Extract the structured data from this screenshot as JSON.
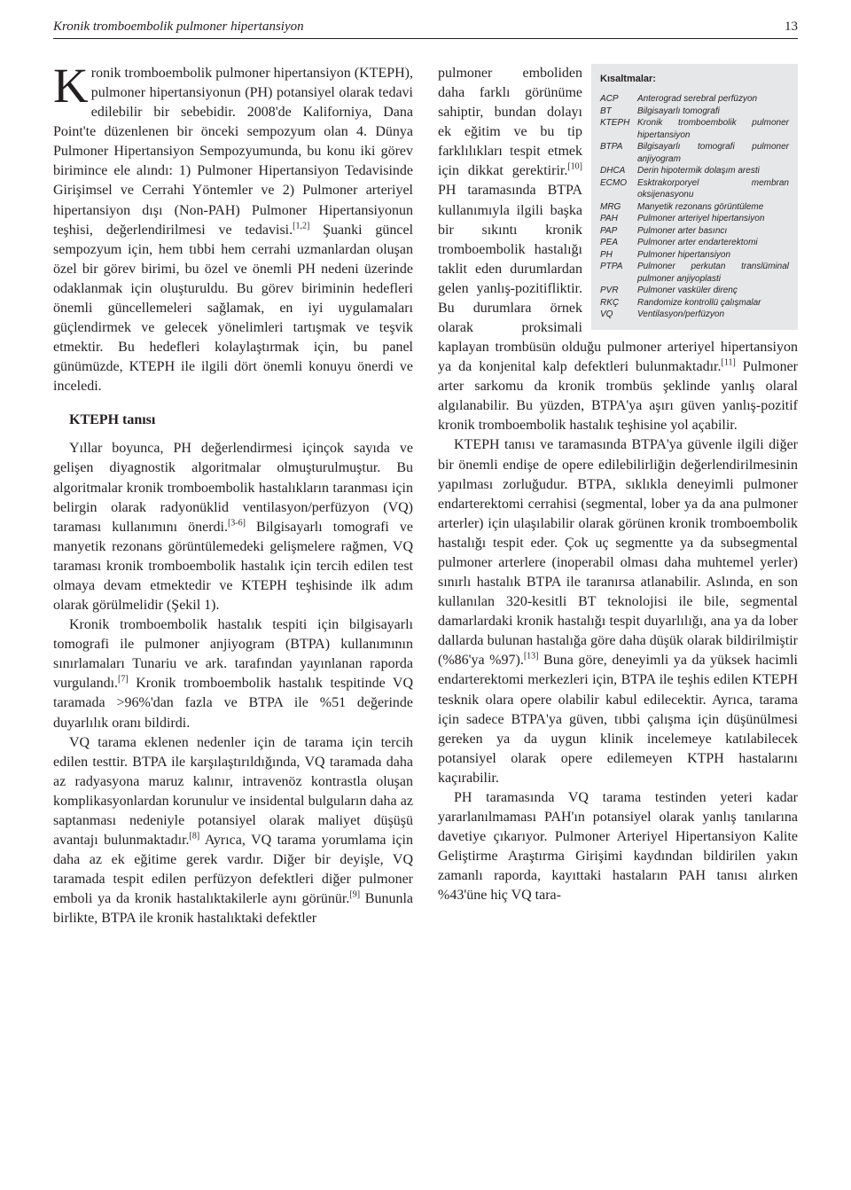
{
  "header": {
    "title": "Kronik tromboembolik pulmoner hipertansiyon",
    "page": "13"
  },
  "left": {
    "p1": "ronik tromboembolik pulmoner hipertansiyon (KTEPH), pulmoner hipertansiyonun (PH) potansiyel olarak tedavi edilebilir bir sebebidir. 2008'de Kaliforniya, Dana Point'te düzenlenen bir önceki sempozyum olan 4. Dünya Pulmoner Hipertansiyon Sempozyumunda, bu konu iki görev birimince ele alındı: 1) Pulmoner Hipertansiyon Tedavisinde Girişimsel ve Cerrahi Yöntemler ve 2) Pulmoner arteriyel hipertansiyon dışı (Non-PAH) Pulmoner Hipertansiyonun teşhisi, değerlendirilmesi ve tedavisi.",
    "p1_sup": "[1,2]",
    "p1b": " Şuanki güncel sempozyum için, hem tıbbi hem cerrahi uzmanlardan oluşan özel bir görev birimi, bu özel ve önemli PH nedeni üzerinde odaklanmak için oluşturuldu. Bu görev biriminin hedefleri önemli güncellemeleri sağlamak, en iyi uygulamaları güçlendirmek ve gelecek yönelimleri tartışmak ve teşvik etmektir. Bu hedefleri kolaylaştırmak için, bu panel günümüzde, KTEPH ile ilgili dört önemli konuyu önerdi ve inceledi.",
    "section1": "KTEPH tanısı",
    "p2": "Yıllar boyunca, PH değerlendirmesi içinçok sayıda ve gelişen diyagnostik algoritmalar olmuşturulmuştur. Bu algoritmalar kronik tromboembolik hastalıkların taranması için belirgin olarak radyonüklid ventilasyon/perfüzyon (VQ) taraması kullanımını önerdi.",
    "p2_sup": "[3-6]",
    "p2b": " Bilgisayarlı tomografi ve manyetik rezonans görüntülemedeki gelişmelere rağmen, VQ taraması kronik tromboembolik hastalık için tercih edilen test olmaya devam etmektedir ve KTEPH teşhisinde ilk adım olarak görülmelidir (Şekil 1).",
    "p3": "Kronik tromboembolik hastalık tespiti için bilgisayarlı tomografi ile pulmoner anjiyogram (BTPA) kullanımının sınırlamaları Tunariu ve ark. tarafından yayınlanan raporda vurgulandı.",
    "p3_sup": "[7]",
    "p3b": " Kronik tromboembolik hastalık tespitinde VQ taramada >96%'dan fazla ve BTPA ile %51 değerinde duyarlılık oranı bildirdi.",
    "p4": "VQ tarama eklenen nedenler için de tarama için tercih edilen testtir. BTPA ile karşılaştırıldığında, VQ taramada daha az radyasyona maruz kalınır, intravenöz kontrastla oluşan komplikasyonlardan korunulur ve insidental bulguların daha az saptanması nedeniyle potansiyel olarak maliyet düşüşü avantajı bulunmaktadır.",
    "p4_sup": "[8]",
    "p4b": " Ayrıca, VQ tarama yorumlama için daha az ek eğitime gerek vardır. Diğer bir deyişle, VQ taramada tespit edilen perfüzyon defektleri diğer pulmoner emboli ya da kronik hastalıktakilerle aynı görünür.",
    "p4_sup2": "[9]",
    "p4c": " Bununla birlikte, BTPA ile kronik hastalıktaki defektler"
  },
  "right": {
    "p1": "pulmoner emboliden daha farklı görünüme sahiptir, bundan dolayı ek eğitim ve bu tip farklılıkları tespit etmek için dikkat gerektirir.",
    "p1_sup": "[10]",
    "p1b": " PH taramasında BTPA kullanımıyla ilgili başka bir sıkıntı kronik tromboembolik hastalığı taklit eden durumlardan gelen yanlış-pozitifliktir. Bu durumlara örnek olarak proksimali kaplayan trombüsün olduğu pul",
    "p1bfull": "moner arteriyel hipertansiyon ya da konjenital kalp defektleri bulunmaktadır.",
    "p1_sup2": "[11]",
    "p1c": " Pulmoner arter sarkomu da kronik trombüs şeklinde yanlış olaral algılanabilir. Bu yüzden, BTPA'ya aşırı güven yanlış-pozitif kronik tromboembolik hastalık teşhisine yol açabilir.",
    "p2": "KTEPH tanısı ve taramasında BTPA'ya güvenle ilgili diğer bir önemli endişe de opere edilebilirliğin değerlendirilmesinin yapılması zorluğudur. BTPA, sıklıkla deneyimli pulmoner endarterektomi cerrahisi (segmental, lober ya da ana pulmoner arterler) için ulaşılabilir olarak görünen kronik tromboembolik hastalığı tespit eder. Çok uç segmentte ya da subsegmental pulmoner arterlere (inoperabil olması daha muhtemel yerler) sınırlı hastalık BTPA ile taranırsa atlanabilir. Aslında, en son kullanılan 320-kesitli BT teknolojisi ile bile, segmental damarlardaki kronik hastalığı tespit duyarlılığı, ana ya da lober dallarda bulunan hastalığa göre daha düşük olarak bildirilmiştir (%86'ya %97).",
    "p2_sup": "[13]",
    "p2b": " Buna göre, deneyimli ya da yüksek hacimli endarterektomi merkezleri için, BTPA ile teşhis edilen KTEPH tesknik olara opere olabilir kabul edilecektir. Ayrıca, tarama için sadece BTPA'ya güven, tıbbi çalışma için düşünülmesi gereken ya da uygun klinik incelemeye katılabilecek potansiyel olarak opere edilemeyen KTPH hastalarını kaçırabilir.",
    "p3": "PH taramasında VQ tarama testinden yeteri kadar yararlanılmaması PAH'ın potansiyel olarak yanlış tanılarına davetiye çıkarıyor. Pulmoner Arteriyel Hipertansiyon Kalite Geliştirme Araştırma Girişimi kaydından bildirilen yakın zamanlı raporda, kayıttaki hastaların PAH tanısı alırken %43'üne hiç VQ tara-"
  },
  "abbr": {
    "title": "Kısaltmalar:",
    "rows": [
      {
        "k": "ACP",
        "v": "Anterograd serebral perfüzyon"
      },
      {
        "k": "BT",
        "v": "Bilgisayarlı tomografi"
      },
      {
        "k": "KTEPH",
        "v": "Kronik tromboembolik pulmoner hipertansiyon"
      },
      {
        "k": "BTPA",
        "v": "Bilgisayarlı tomografi pulmoner anjiyogram"
      },
      {
        "k": "DHCA",
        "v": "Derin hipotermik dolaşım aresti"
      },
      {
        "k": "ECMO",
        "v": "Esktrakorporyel membran oksijenasyonu"
      },
      {
        "k": "MRG",
        "v": "Manyetik rezonans görüntüleme"
      },
      {
        "k": "PAH",
        "v": "Pulmoner arteriyel hipertansiyon"
      },
      {
        "k": "PAP",
        "v": "Pulmoner arter basıncı"
      },
      {
        "k": "PEA",
        "v": "Pulmoner arter endarterektomi"
      },
      {
        "k": "PH",
        "v": "Pulmoner hipertansiyon"
      },
      {
        "k": "PTPA",
        "v": "Pulmoner perkutan translüminal pulmoner anjiyoplasti"
      },
      {
        "k": "PVR",
        "v": "Pulmoner vasküler direnç"
      },
      {
        "k": "RKÇ",
        "v": "Randomize kontrollü çalışmalar"
      },
      {
        "k": "VQ",
        "v": "Ventilasyon/perfüzyon"
      }
    ]
  },
  "styles": {
    "page_bg": "#ffffff",
    "text_color": "#231f20",
    "abbr_bg": "#e6e7e8",
    "body_font_size": 16,
    "abbr_font_size": 10,
    "header_font_size": 15,
    "dropcap_size": 55,
    "line_height": 1.38
  }
}
